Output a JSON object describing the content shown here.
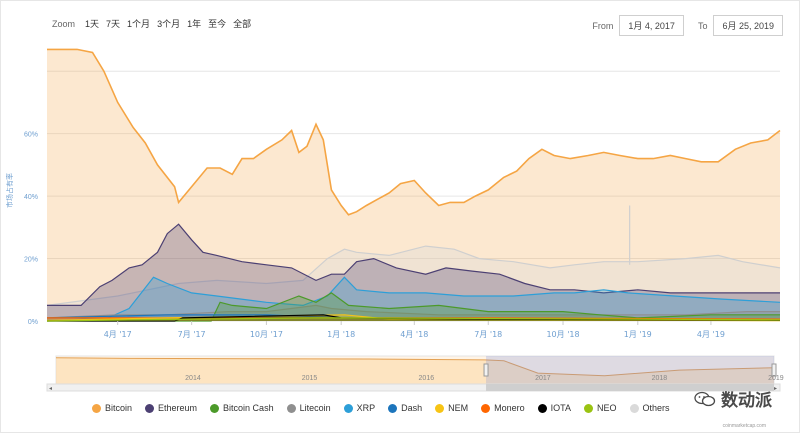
{
  "toolbar": {
    "zoom_label": "Zoom",
    "buttons": [
      "1天",
      "7天",
      "1个月",
      "3个月",
      "1年",
      "至今",
      "全部"
    ]
  },
  "range": {
    "from_label": "From",
    "from_value": "1月 4, 2017",
    "to_label": "To",
    "to_value": "6月 25, 2019"
  },
  "watermark": {
    "text": "数动派",
    "icon": "wechat-icon"
  },
  "credit": "coinmarketcap.com",
  "colors": {
    "Bitcoin": "#f5a544",
    "Ethereum": "#4c4073",
    "Bitcoin Cash": "#4c9a2a",
    "Litecoin": "#8f8f8f",
    "XRP": "#2d9fd8",
    "Dash": "#1c75bc",
    "NEM": "#f7c415",
    "Monero": "#ff6600",
    "IOTA": "#000000",
    "NEO": "#9ac312",
    "Others": "#dadada"
  },
  "chart_data": {
    "type": "area",
    "ylabel": "市场占有率",
    "yticks": [
      "0%",
      "20%",
      "40%",
      "60%"
    ],
    "ylim": [
      0,
      90
    ],
    "x_range": [
      "2017-01-04",
      "2019-06-25"
    ],
    "xticks": [
      {
        "date": "2017-04-01",
        "label": "4月 '17"
      },
      {
        "date": "2017-07-01",
        "label": "7月 '17"
      },
      {
        "date": "2017-10-01",
        "label": "10月 '17"
      },
      {
        "date": "2018-01-01",
        "label": "1月 '18"
      },
      {
        "date": "2018-04-01",
        "label": "4月 '18"
      },
      {
        "date": "2018-07-01",
        "label": "7月 '18"
      },
      {
        "date": "2018-10-01",
        "label": "10月 '18"
      },
      {
        "date": "2019-01-01",
        "label": "1月 '19"
      },
      {
        "date": "2019-04-01",
        "label": "4月 '19"
      }
    ],
    "series": [
      {
        "name": "Bitcoin",
        "points": [
          [
            "2017-01-04",
            87
          ],
          [
            "2017-02-10",
            87
          ],
          [
            "2017-03-01",
            86
          ],
          [
            "2017-03-15",
            80
          ],
          [
            "2017-04-01",
            70
          ],
          [
            "2017-04-20",
            62
          ],
          [
            "2017-05-05",
            57
          ],
          [
            "2017-05-20",
            50
          ],
          [
            "2017-06-10",
            43
          ],
          [
            "2017-06-15",
            38
          ],
          [
            "2017-07-01",
            43
          ],
          [
            "2017-07-20",
            49
          ],
          [
            "2017-08-05",
            49
          ],
          [
            "2017-08-20",
            47
          ],
          [
            "2017-09-01",
            52
          ],
          [
            "2017-09-15",
            52
          ],
          [
            "2017-10-01",
            55
          ],
          [
            "2017-10-20",
            58
          ],
          [
            "2017-11-01",
            61
          ],
          [
            "2017-11-10",
            54
          ],
          [
            "2017-11-20",
            56
          ],
          [
            "2017-12-01",
            63
          ],
          [
            "2017-12-10",
            58
          ],
          [
            "2017-12-20",
            42
          ],
          [
            "2018-01-01",
            37
          ],
          [
            "2018-01-10",
            34
          ],
          [
            "2018-01-20",
            35
          ],
          [
            "2018-02-01",
            37
          ],
          [
            "2018-02-15",
            39
          ],
          [
            "2018-03-01",
            41
          ],
          [
            "2018-03-15",
            44
          ],
          [
            "2018-04-01",
            45
          ],
          [
            "2018-04-15",
            41
          ],
          [
            "2018-05-01",
            37
          ],
          [
            "2018-05-15",
            38
          ],
          [
            "2018-06-01",
            38
          ],
          [
            "2018-06-15",
            40
          ],
          [
            "2018-07-01",
            42
          ],
          [
            "2018-07-20",
            46
          ],
          [
            "2018-08-05",
            48
          ],
          [
            "2018-08-20",
            52
          ],
          [
            "2018-09-05",
            55
          ],
          [
            "2018-09-20",
            53
          ],
          [
            "2018-10-10",
            52
          ],
          [
            "2018-11-01",
            53
          ],
          [
            "2018-11-20",
            54
          ],
          [
            "2018-12-10",
            53
          ],
          [
            "2019-01-01",
            52
          ],
          [
            "2019-01-20",
            52
          ],
          [
            "2019-02-10",
            53
          ],
          [
            "2019-03-01",
            52
          ],
          [
            "2019-03-20",
            51
          ],
          [
            "2019-04-10",
            51
          ],
          [
            "2019-05-01",
            55
          ],
          [
            "2019-05-20",
            57
          ],
          [
            "2019-06-10",
            58
          ],
          [
            "2019-06-25",
            61
          ]
        ]
      },
      {
        "name": "Others",
        "points": [
          [
            "2017-01-04",
            5
          ],
          [
            "2017-04-01",
            8
          ],
          [
            "2017-06-15",
            12
          ],
          [
            "2017-08-01",
            13
          ],
          [
            "2017-10-01",
            12
          ],
          [
            "2017-11-15",
            13
          ],
          [
            "2017-12-15",
            20
          ],
          [
            "2018-01-05",
            23
          ],
          [
            "2018-01-20",
            22
          ],
          [
            "2018-03-01",
            21
          ],
          [
            "2018-04-15",
            24
          ],
          [
            "2018-05-20",
            23
          ],
          [
            "2018-06-20",
            20
          ],
          [
            "2018-08-01",
            19
          ],
          [
            "2018-09-15",
            17
          ],
          [
            "2018-10-15",
            18
          ],
          [
            "2018-11-20",
            19
          ],
          [
            "2019-01-01",
            19
          ],
          [
            "2019-03-01",
            20
          ],
          [
            "2019-04-10",
            21
          ],
          [
            "2019-05-10",
            19
          ],
          [
            "2019-06-25",
            17
          ]
        ]
      },
      {
        "name": "Ethereum",
        "points": [
          [
            "2017-01-04",
            5
          ],
          [
            "2017-02-15",
            5
          ],
          [
            "2017-03-10",
            11
          ],
          [
            "2017-03-25",
            13
          ],
          [
            "2017-04-15",
            17
          ],
          [
            "2017-05-01",
            18
          ],
          [
            "2017-05-20",
            22
          ],
          [
            "2017-06-01",
            28
          ],
          [
            "2017-06-15",
            31
          ],
          [
            "2017-07-01",
            26
          ],
          [
            "2017-07-15",
            22
          ],
          [
            "2017-08-01",
            21
          ],
          [
            "2017-09-01",
            19
          ],
          [
            "2017-10-01",
            18
          ],
          [
            "2017-11-01",
            17
          ],
          [
            "2017-12-01",
            13
          ],
          [
            "2017-12-20",
            15
          ],
          [
            "2018-01-05",
            15
          ],
          [
            "2018-01-20",
            19
          ],
          [
            "2018-02-10",
            20
          ],
          [
            "2018-03-10",
            17
          ],
          [
            "2018-04-15",
            15
          ],
          [
            "2018-05-10",
            17
          ],
          [
            "2018-06-10",
            16
          ],
          [
            "2018-07-15",
            15
          ],
          [
            "2018-08-15",
            12
          ],
          [
            "2018-09-15",
            10
          ],
          [
            "2018-10-15",
            10
          ],
          [
            "2018-11-20",
            9
          ],
          [
            "2019-01-01",
            10
          ],
          [
            "2019-02-10",
            9
          ],
          [
            "2019-04-01",
            9
          ],
          [
            "2019-05-15",
            9
          ],
          [
            "2019-06-25",
            9
          ]
        ]
      },
      {
        "name": "XRP",
        "points": [
          [
            "2017-01-04",
            0
          ],
          [
            "2017-03-20",
            1
          ],
          [
            "2017-04-15",
            4
          ],
          [
            "2017-05-15",
            14
          ],
          [
            "2017-06-01",
            12
          ],
          [
            "2017-07-01",
            9
          ],
          [
            "2017-08-01",
            8
          ],
          [
            "2017-10-01",
            6
          ],
          [
            "2017-11-15",
            5
          ],
          [
            "2017-12-15",
            8
          ],
          [
            "2018-01-05",
            14
          ],
          [
            "2018-01-20",
            10
          ],
          [
            "2018-03-01",
            9
          ],
          [
            "2018-04-15",
            9
          ],
          [
            "2018-06-01",
            8
          ],
          [
            "2018-08-01",
            8
          ],
          [
            "2018-09-20",
            9
          ],
          [
            "2018-10-15",
            9
          ],
          [
            "2018-11-20",
            10
          ],
          [
            "2018-12-20",
            9
          ],
          [
            "2019-02-15",
            8
          ],
          [
            "2019-04-15",
            7
          ],
          [
            "2019-06-25",
            6
          ]
        ]
      },
      {
        "name": "Litecoin",
        "points": [
          [
            "2017-01-04",
            1
          ],
          [
            "2017-04-01",
            2
          ],
          [
            "2017-06-01",
            2
          ],
          [
            "2017-08-15",
            3
          ],
          [
            "2017-10-01",
            3
          ],
          [
            "2017-12-01",
            5
          ],
          [
            "2017-12-20",
            4
          ],
          [
            "2018-02-01",
            3
          ],
          [
            "2018-05-01",
            2
          ],
          [
            "2018-09-01",
            2
          ],
          [
            "2019-01-01",
            2
          ],
          [
            "2019-03-01",
            2
          ],
          [
            "2019-05-15",
            3
          ],
          [
            "2019-06-25",
            3
          ]
        ]
      },
      {
        "name": "Bitcoin Cash",
        "points": [
          [
            "2017-01-04",
            0
          ],
          [
            "2017-07-25",
            0
          ],
          [
            "2017-08-05",
            6
          ],
          [
            "2017-08-20",
            5
          ],
          [
            "2017-10-01",
            4
          ],
          [
            "2017-11-10",
            8
          ],
          [
            "2017-12-01",
            6
          ],
          [
            "2017-12-20",
            9
          ],
          [
            "2018-01-10",
            5
          ],
          [
            "2018-03-01",
            4
          ],
          [
            "2018-05-01",
            5
          ],
          [
            "2018-07-01",
            3
          ],
          [
            "2018-10-01",
            3
          ],
          [
            "2018-11-15",
            2
          ],
          [
            "2019-01-01",
            1
          ],
          [
            "2019-04-01",
            2
          ],
          [
            "2019-06-25",
            2
          ]
        ]
      },
      {
        "name": "Dash",
        "points": [
          [
            "2017-01-04",
            1
          ],
          [
            "2017-06-01",
            2
          ],
          [
            "2017-10-01",
            2
          ],
          [
            "2018-01-01",
            1
          ],
          [
            "2018-06-01",
            1
          ],
          [
            "2019-01-01",
            0.5
          ],
          [
            "2019-06-25",
            0.5
          ]
        ]
      },
      {
        "name": "Monero",
        "points": [
          [
            "2017-01-04",
            1
          ],
          [
            "2017-06-01",
            1
          ],
          [
            "2018-01-01",
            1
          ],
          [
            "2018-07-01",
            1
          ],
          [
            "2019-06-25",
            0.6
          ]
        ]
      },
      {
        "name": "NEM",
        "points": [
          [
            "2017-01-04",
            0.2
          ],
          [
            "2017-06-01",
            1
          ],
          [
            "2018-01-05",
            2
          ],
          [
            "2018-03-01",
            0.6
          ],
          [
            "2019-06-25",
            0.1
          ]
        ]
      },
      {
        "name": "IOTA",
        "points": [
          [
            "2017-01-04",
            0
          ],
          [
            "2017-06-10",
            0
          ],
          [
            "2017-06-20",
            1
          ],
          [
            "2017-12-10",
            2
          ],
          [
            "2018-01-01",
            1
          ],
          [
            "2018-06-01",
            0.6
          ],
          [
            "2019-06-25",
            0.3
          ]
        ]
      },
      {
        "name": "NEO",
        "points": [
          [
            "2017-01-04",
            0
          ],
          [
            "2017-07-01",
            0.6
          ],
          [
            "2017-12-01",
            1
          ],
          [
            "2018-02-01",
            1
          ],
          [
            "2019-06-25",
            0.4
          ]
        ]
      }
    ],
    "spike": {
      "series": "Others",
      "date": "2018-12-22",
      "value": 37
    },
    "navigator": {
      "labels": [
        "2014",
        "2015",
        "2016",
        "2017",
        "2018",
        "2019"
      ],
      "range": [
        "2013-04-28",
        "2019-06-25"
      ],
      "selected": [
        "2017-01-04",
        "2019-06-25"
      ]
    }
  },
  "legend": [
    {
      "name": "Bitcoin",
      "icon": "dot"
    },
    {
      "name": "Ethereum",
      "icon": "dot"
    },
    {
      "name": "Bitcoin Cash",
      "icon": "dot"
    },
    {
      "name": "Litecoin",
      "icon": "dot"
    },
    {
      "name": "XRP",
      "icon": "dot"
    },
    {
      "name": "Dash",
      "icon": "dot"
    },
    {
      "name": "NEM",
      "icon": "dot"
    },
    {
      "name": "Monero",
      "icon": "dot"
    },
    {
      "name": "IOTA",
      "icon": "dot"
    },
    {
      "name": "NEO",
      "icon": "dot"
    },
    {
      "name": "Others",
      "icon": "dot"
    }
  ]
}
